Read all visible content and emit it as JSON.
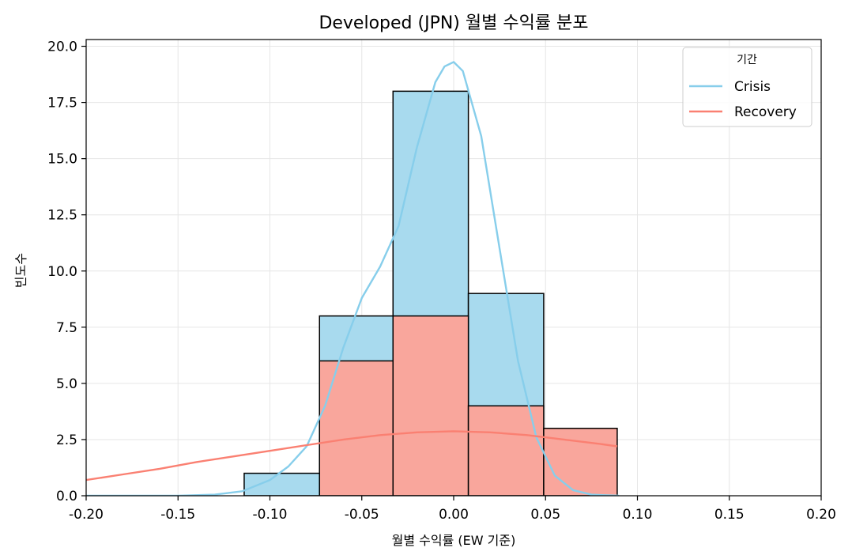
{
  "chart_data": {
    "type": "histogram",
    "title": "Developed (JPN) 월별 수익률 분포",
    "xlabel": "월별 수익률 (EW 기준)",
    "ylabel": "빈도수",
    "xlim": [
      -0.2,
      0.2
    ],
    "ylim": [
      0,
      20.3
    ],
    "xticks": [
      -0.2,
      -0.15,
      -0.1,
      -0.05,
      0.0,
      0.05,
      0.1,
      0.15,
      0.2
    ],
    "xtick_labels": [
      "-0.20",
      "-0.15",
      "-0.10",
      "-0.05",
      "0.00",
      "0.05",
      "0.10",
      "0.15",
      "0.20"
    ],
    "yticks": [
      0,
      2.5,
      5,
      7.5,
      10,
      12.5,
      15,
      17.5,
      20
    ],
    "ytick_labels": [
      "0.0",
      "2.5",
      "5.0",
      "7.5",
      "10.0",
      "12.5",
      "15.0",
      "17.5",
      "20.0"
    ],
    "grid": true,
    "legend": {
      "title": "기간",
      "position": "top-right",
      "entries": [
        "Crisis",
        "Recovery"
      ]
    },
    "series": [
      {
        "name": "Crisis",
        "color": "#87CEEB",
        "fill_color": "#A8DAEE",
        "bins": [
          {
            "x0": -0.114,
            "x1": -0.073,
            "count": 1
          },
          {
            "x0": -0.073,
            "x1": -0.033,
            "count": 8
          },
          {
            "x0": -0.033,
            "x1": 0.008,
            "count": 18
          },
          {
            "x0": 0.008,
            "x1": 0.049,
            "count": 9
          }
        ],
        "kde": [
          [
            -0.2,
            0.0
          ],
          [
            -0.15,
            0.0
          ],
          [
            -0.13,
            0.05
          ],
          [
            -0.115,
            0.2
          ],
          [
            -0.1,
            0.7
          ],
          [
            -0.09,
            1.3
          ],
          [
            -0.08,
            2.2
          ],
          [
            -0.07,
            4.0
          ],
          [
            -0.06,
            6.6
          ],
          [
            -0.05,
            8.8
          ],
          [
            -0.04,
            10.2
          ],
          [
            -0.03,
            12.0
          ],
          [
            -0.02,
            15.5
          ],
          [
            -0.01,
            18.4
          ],
          [
            -0.005,
            19.1
          ],
          [
            0.0,
            19.3
          ],
          [
            0.005,
            18.9
          ],
          [
            0.015,
            16.0
          ],
          [
            0.025,
            11.0
          ],
          [
            0.035,
            6.0
          ],
          [
            0.045,
            2.6
          ],
          [
            0.055,
            0.9
          ],
          [
            0.065,
            0.25
          ],
          [
            0.075,
            0.05
          ],
          [
            0.09,
            0.0
          ]
        ]
      },
      {
        "name": "Recovery",
        "color": "#FA8072",
        "fill_color": "#F9A69C",
        "bins": [
          {
            "x0": -0.073,
            "x1": -0.033,
            "count": 6
          },
          {
            "x0": -0.033,
            "x1": 0.008,
            "count": 8
          },
          {
            "x0": 0.008,
            "x1": 0.049,
            "count": 4
          },
          {
            "x0": 0.049,
            "x1": 0.089,
            "count": 3
          }
        ],
        "kde": [
          [
            -0.2,
            0.7
          ],
          [
            -0.18,
            0.95
          ],
          [
            -0.16,
            1.2
          ],
          [
            -0.14,
            1.5
          ],
          [
            -0.12,
            1.75
          ],
          [
            -0.1,
            2.0
          ],
          [
            -0.08,
            2.25
          ],
          [
            -0.06,
            2.5
          ],
          [
            -0.04,
            2.7
          ],
          [
            -0.02,
            2.82
          ],
          [
            0.0,
            2.87
          ],
          [
            0.02,
            2.82
          ],
          [
            0.04,
            2.7
          ],
          [
            0.06,
            2.5
          ],
          [
            0.08,
            2.3
          ],
          [
            0.089,
            2.2
          ]
        ]
      }
    ]
  }
}
